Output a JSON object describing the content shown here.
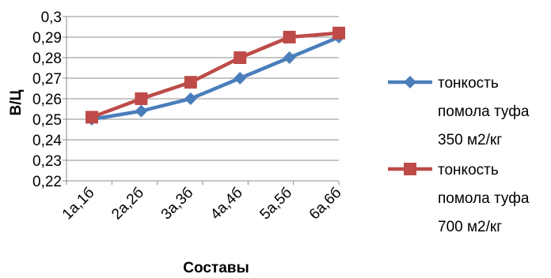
{
  "chart_data": {
    "type": "line",
    "title": "",
    "xlabel": "Составы",
    "ylabel": "В/Ц",
    "categories": [
      "1а,1б",
      "2а,2б",
      "3а,3б",
      "4а,4б",
      "5а,5б",
      "6а,6б"
    ],
    "ylim": [
      0.22,
      0.3
    ],
    "y_ticks": [
      "0,22",
      "0,23",
      "0,24",
      "0,25",
      "0,26",
      "0,27",
      "0,28",
      "0,29",
      "0,3"
    ],
    "grid": "horizontal",
    "legend_position": "right",
    "series": [
      {
        "name": "тонкость помола туфа 350 м2/кг",
        "legend_lines": [
          "тонкость",
          "помола туфа",
          "350 м2/кг"
        ],
        "color": "#4a7ebb",
        "marker": "diamond",
        "values": [
          0.25,
          0.254,
          0.26,
          0.27,
          0.28,
          0.29
        ]
      },
      {
        "name": "тонкость помола туфа 700 м2/кг",
        "legend_lines": [
          "тонкость",
          "помола туфа",
          "700 м2/кг"
        ],
        "color": "#be4b48",
        "marker": "square",
        "values": [
          0.251,
          0.26,
          0.268,
          0.28,
          0.29,
          0.292
        ]
      }
    ]
  }
}
